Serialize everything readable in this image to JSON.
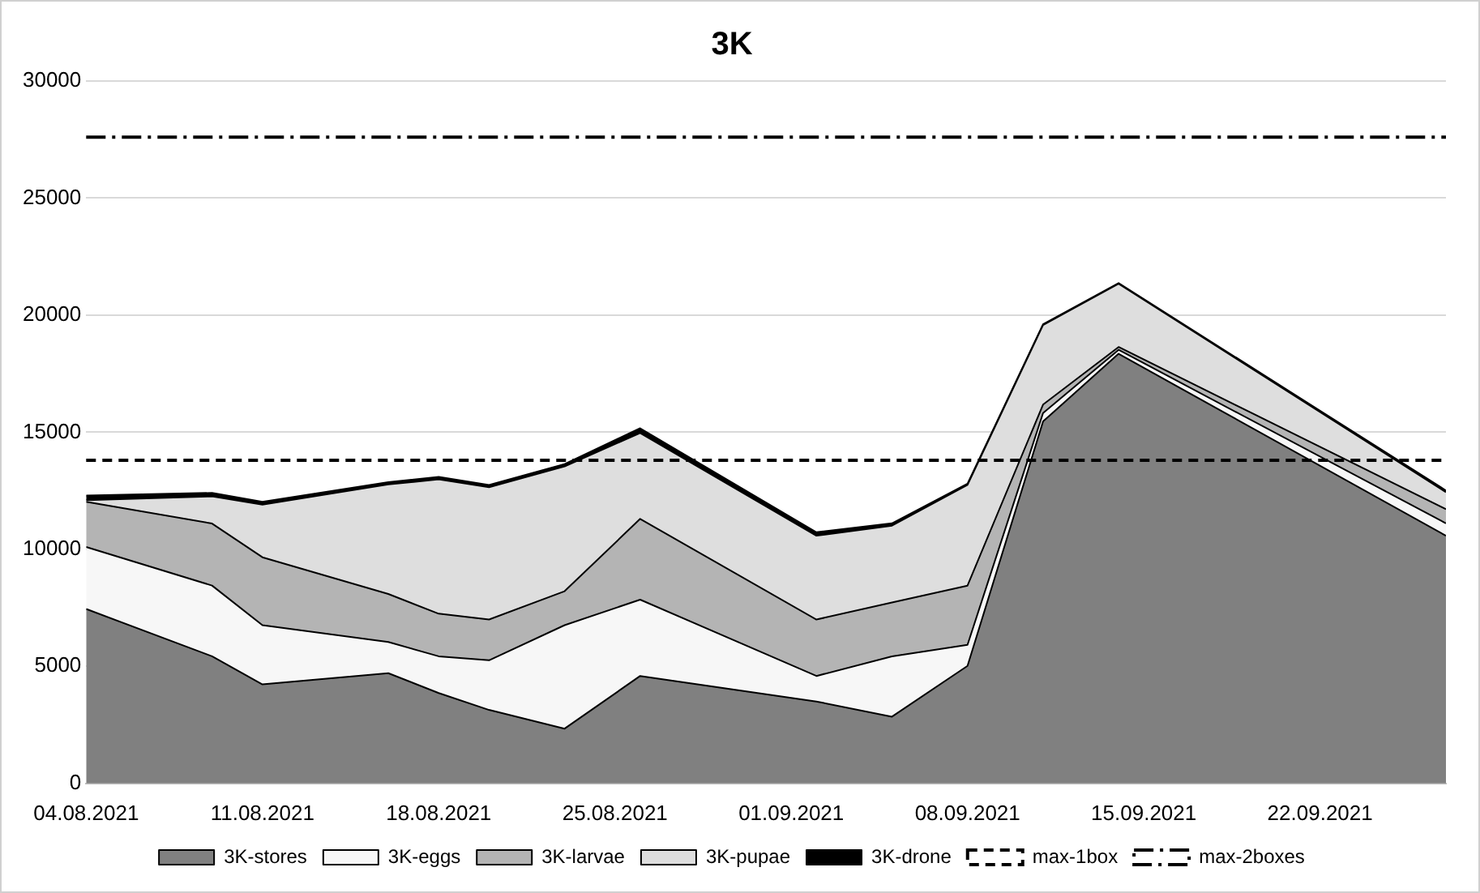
{
  "chart_data": {
    "type": "area",
    "title": "3K",
    "stacked": true,
    "x": [
      "2021-08-04",
      "2021-08-09",
      "2021-08-11",
      "2021-08-16",
      "2021-08-18",
      "2021-08-20",
      "2021-08-23",
      "2021-08-26",
      "2021-09-02",
      "2021-09-05",
      "2021-09-08",
      "2021-09-11",
      "2021-09-14",
      "2021-09-27"
    ],
    "series": [
      {
        "name": "3K-stores",
        "color": "#808080",
        "values": [
          7450,
          5430,
          4230,
          4710,
          3860,
          3140,
          2340,
          4590,
          3500,
          2850,
          5020,
          15460,
          18350,
          10580
        ]
      },
      {
        "name": "3K-eggs",
        "color": "#f7f7f7",
        "values": [
          2650,
          3020,
          2530,
          1330,
          1570,
          2120,
          4420,
          3260,
          1090,
          2580,
          900,
          360,
          170,
          530
        ]
      },
      {
        "name": "3K-larvae",
        "color": "#b4b4b4",
        "values": [
          1930,
          2650,
          2900,
          2050,
          1820,
          1740,
          1450,
          3450,
          2410,
          2300,
          2530,
          360,
          120,
          600
        ]
      },
      {
        "name": "3K-pupae",
        "color": "#dedede",
        "values": [
          70,
          1160,
          2250,
          4680,
          5740,
          5650,
          5330,
          3670,
          3580,
          3280,
          4300,
          3400,
          2700,
          730
        ]
      },
      {
        "name": "3K-drone",
        "color": "#000000",
        "values": [
          200,
          150,
          120,
          100,
          100,
          100,
          100,
          200,
          150,
          100,
          50,
          30,
          30,
          70
        ]
      }
    ],
    "ref_lines": [
      {
        "axis": "y",
        "value": 13800,
        "label": "max-1box",
        "color": "#000000",
        "line_style": "dashed"
      },
      {
        "axis": "y",
        "value": 27600,
        "label": "max-2boxes",
        "color": "#000000",
        "line_style": "dashdot"
      }
    ],
    "xlim": [
      "2021-08-04",
      "2021-09-27"
    ],
    "xticks": [
      {
        "value": "2021-08-04",
        "label": "04.08.2021"
      },
      {
        "value": "2021-08-11",
        "label": "11.08.2021"
      },
      {
        "value": "2021-08-18",
        "label": "18.08.2021"
      },
      {
        "value": "2021-08-25",
        "label": "25.08.2021"
      },
      {
        "value": "2021-09-01",
        "label": "01.09.2021"
      },
      {
        "value": "2021-09-08",
        "label": "08.09.2021"
      },
      {
        "value": "2021-09-15",
        "label": "15.09.2021"
      },
      {
        "value": "2021-09-22",
        "label": "22.09.2021"
      }
    ],
    "ylim": [
      0,
      30000
    ],
    "yticks": [
      0,
      5000,
      10000,
      15000,
      20000,
      25000,
      30000
    ],
    "grid": "y",
    "legend": "bottom"
  }
}
